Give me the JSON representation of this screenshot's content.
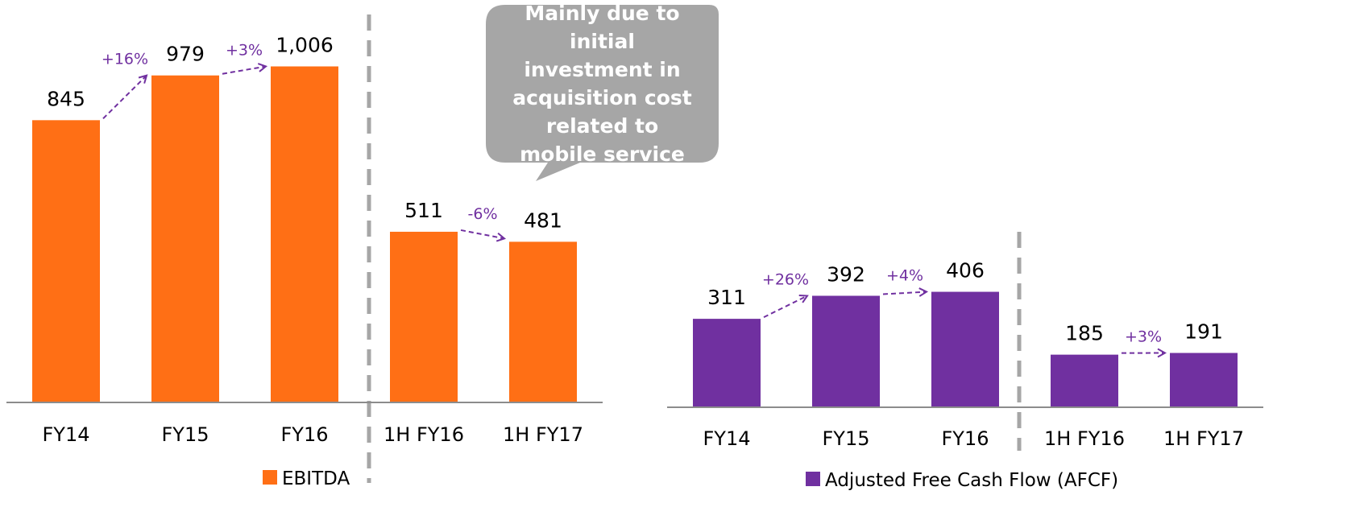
{
  "chart_data": [
    {
      "type": "bar",
      "categories": [
        "FY14",
        "FY15",
        "FY16",
        "1H FY16",
        "1H FY17"
      ],
      "series": [
        {
          "name": "EBITDA",
          "color": "#ff6f15",
          "values": [
            845,
            979,
            1006,
            511,
            481
          ],
          "value_labels": [
            "845",
            "979",
            "1,006",
            "511",
            "481"
          ]
        }
      ],
      "growth_labels": [
        "+16%",
        "+3%",
        null,
        "-6%"
      ],
      "annotation": "Mainly due to initial investment in acquisition cost related to mobile service",
      "ylim": [
        0,
        1200
      ]
    },
    {
      "type": "bar",
      "categories": [
        "FY14",
        "FY15",
        "FY16",
        "1H FY16",
        "1H FY17"
      ],
      "series": [
        {
          "name": "Adjusted Free Cash Flow (AFCF)",
          "color": "#7030a0",
          "values": [
            311,
            392,
            406,
            185,
            191
          ]
        }
      ],
      "growth_labels": [
        "+26%",
        "+4%",
        null,
        "+3%"
      ],
      "ylim": [
        0,
        1200
      ]
    }
  ]
}
